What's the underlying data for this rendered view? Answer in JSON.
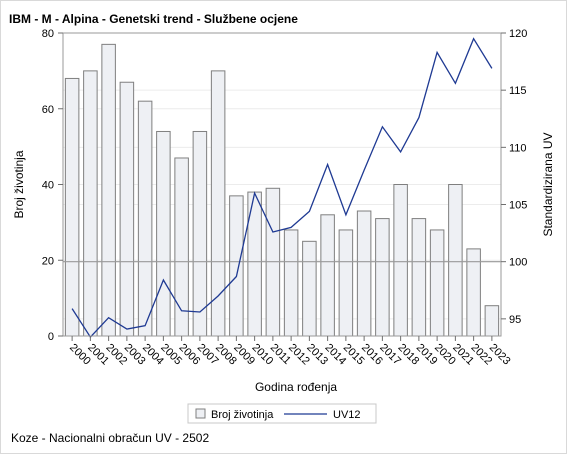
{
  "chart_data": {
    "type": "bar",
    "title": "IBM - M - Alpina - Genetski trend - Službene ocjene",
    "categories": [
      "2000",
      "2001",
      "2002",
      "2003",
      "2004",
      "2005",
      "2006",
      "2007",
      "2008",
      "2009",
      "2010",
      "2011",
      "2012",
      "2013",
      "2014",
      "2015",
      "2016",
      "2017",
      "2018",
      "2019",
      "2020",
      "2021",
      "2022",
      "2023"
    ],
    "xlabel": "Godina rođenja",
    "ylabel": "Broj životinja",
    "y2label": "Standardizirana UV",
    "ylim": [
      0,
      80
    ],
    "y2lim": [
      93.5,
      120
    ],
    "yticks": [
      0,
      20,
      40,
      60,
      80
    ],
    "y2ticks": [
      95,
      100,
      105,
      110,
      115,
      120
    ],
    "reference_line_y2": 100,
    "grid": "horizontal",
    "legend_position": "bottom",
    "series": [
      {
        "name": "Broj životinja",
        "type": "bar",
        "axis": "left",
        "color": "#eef0f4",
        "stroke": "#7f7f7f",
        "values": [
          68,
          70,
          77,
          67,
          62,
          54,
          47,
          54,
          70,
          37,
          38,
          39,
          28,
          25,
          32,
          28,
          33,
          31,
          40,
          31,
          28,
          40,
          23,
          8
        ]
      },
      {
        "name": "UV12",
        "type": "line",
        "axis": "right",
        "color": "#1f3a93",
        "values": [
          95.9,
          93.4,
          95.1,
          94.1,
          94.4,
          98.4,
          95.7,
          95.6,
          97.0,
          98.7,
          106.0,
          102.6,
          103.0,
          104.4,
          108.5,
          104.1,
          108.0,
          111.8,
          109.6,
          112.6,
          118.3,
          115.6,
          119.5,
          116.9
        ]
      }
    ]
  },
  "footnote": "Koze - Nacionalni obračun UV - 2502"
}
